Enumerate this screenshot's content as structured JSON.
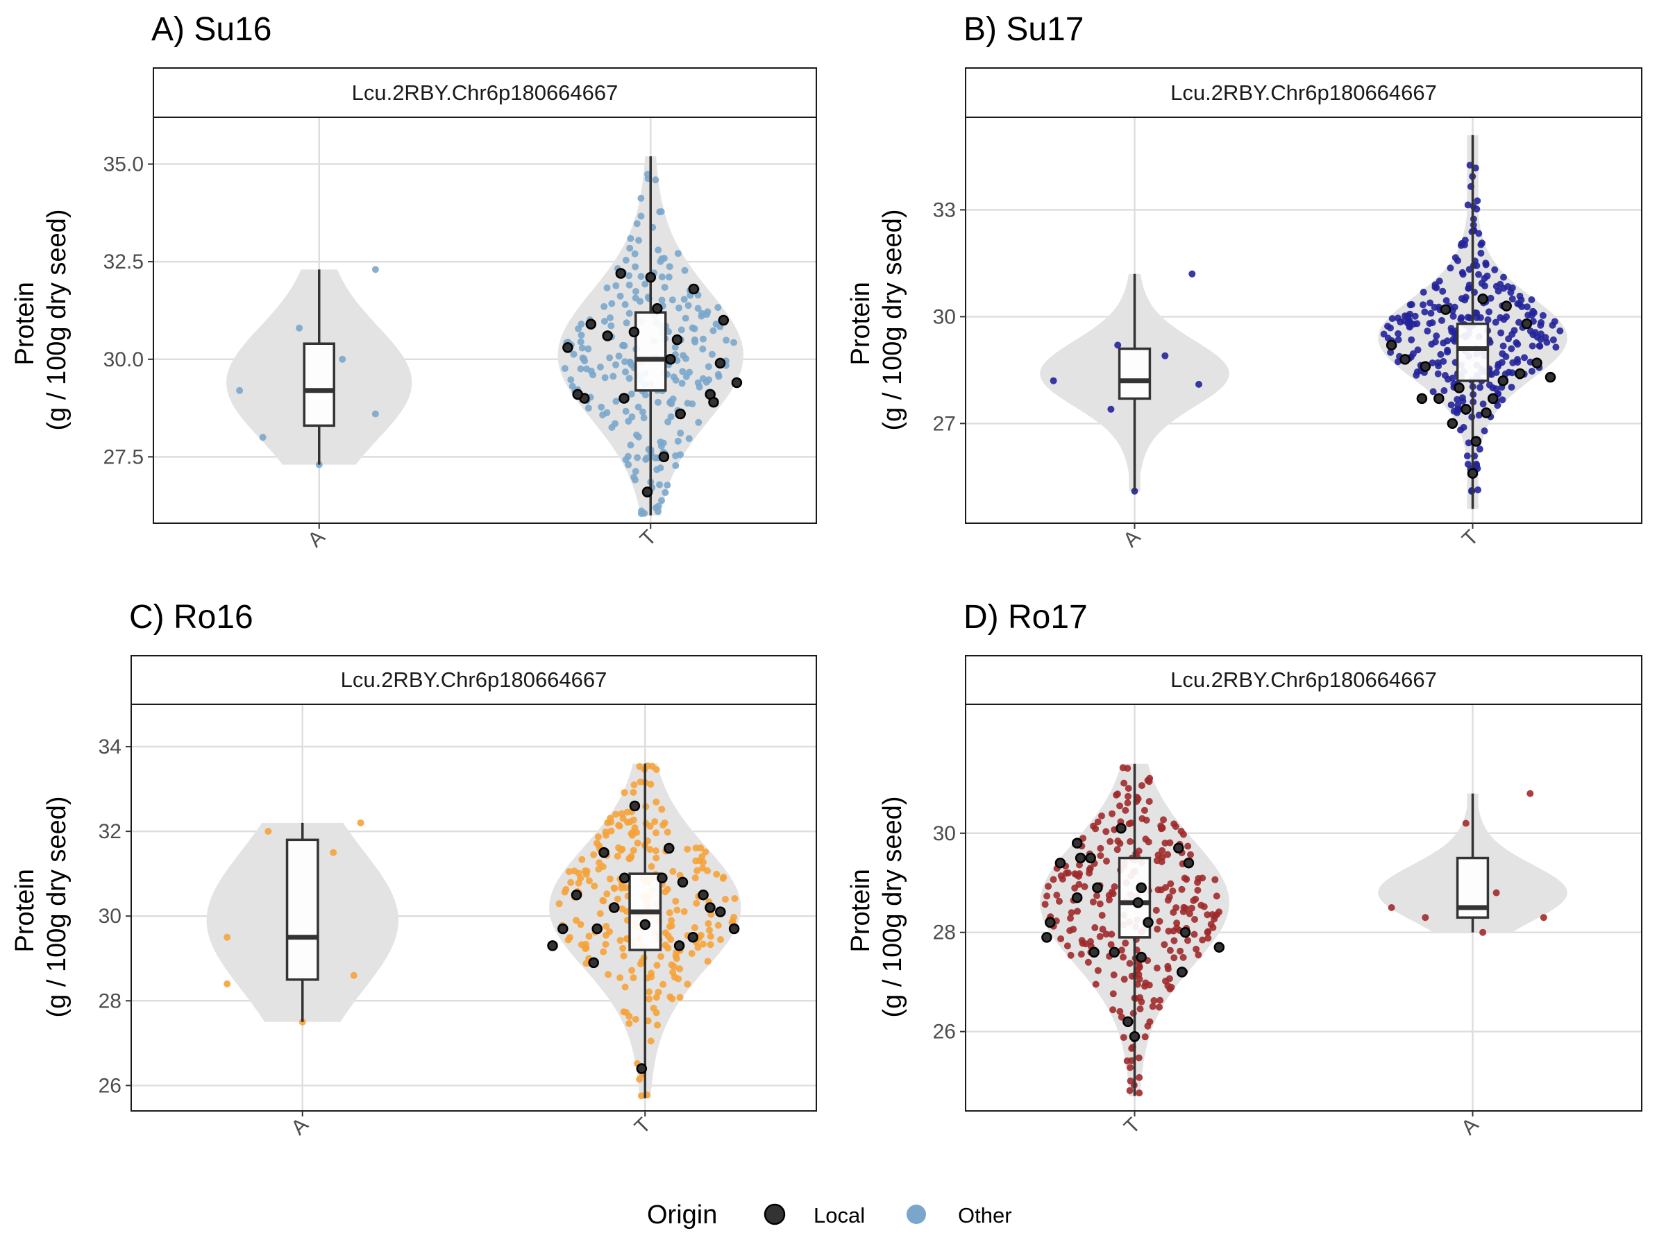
{
  "colors": {
    "violin": "#e3e3e3",
    "grid": "#dedede",
    "box_stroke": "#333333",
    "local": "#1a1a1a",
    "other_legend": "#7aa6cb"
  },
  "legend": {
    "title": "Origin",
    "items": [
      {
        "label": "Local",
        "color": "#333333",
        "outlined": true
      },
      {
        "label": "Other",
        "color": "#7aa6cb",
        "outlined": false
      }
    ]
  },
  "chart_data": [
    {
      "type": "violin",
      "title": "A) Su16",
      "strip": "Lcu.2RBY.Chr6p180664667",
      "ylabel": "Protein\n(g / 100g dry seed)",
      "ylim": [
        25.8,
        36.2
      ],
      "yticks": [
        "27.5",
        "30.0",
        "32.5",
        "35.0"
      ],
      "ytick_values": [
        27.5,
        30.0,
        32.5,
        35.0
      ],
      "categories": [
        "A",
        "T"
      ],
      "point_color": "#7aa6cb",
      "groups": [
        {
          "category": "A",
          "violin_min": 27.3,
          "violin_max": 32.3,
          "violin_mode": 29.4,
          "violin_spread": 1.4,
          "box": {
            "min": 27.3,
            "q1": 28.3,
            "median": 29.2,
            "q3": 30.4,
            "max": 32.3
          },
          "other_points": [
            [
              -0.24,
              29.2
            ],
            [
              -0.17,
              28.0
            ],
            [
              -0.06,
              30.8
            ],
            [
              0.07,
              30.0
            ],
            [
              0.17,
              32.3
            ],
            [
              0.17,
              28.6
            ],
            [
              0.0,
              27.3
            ]
          ],
          "local_points": []
        },
        {
          "category": "T",
          "violin_min": 26.0,
          "violin_max": 35.2,
          "violin_mode": 30.1,
          "violin_spread": 1.6,
          "box": {
            "min": 26.0,
            "q1": 29.2,
            "median": 30.0,
            "q3": 31.2,
            "max": 35.2
          },
          "other_count": 240,
          "other_seed": 11,
          "local_points": [
            [
              -0.09,
              32.2
            ],
            [
              0.0,
              32.1
            ],
            [
              0.13,
              31.8
            ],
            [
              -0.18,
              30.9
            ],
            [
              0.22,
              31.0
            ],
            [
              -0.05,
              30.7
            ],
            [
              0.02,
              31.3
            ],
            [
              0.08,
              30.5
            ],
            [
              -0.25,
              30.3
            ],
            [
              0.21,
              29.9
            ],
            [
              0.26,
              29.4
            ],
            [
              -0.2,
              29.0
            ],
            [
              -0.22,
              29.1
            ],
            [
              0.18,
              29.1
            ],
            [
              0.19,
              28.9
            ],
            [
              -0.08,
              29.0
            ],
            [
              0.09,
              28.6
            ],
            [
              0.04,
              27.5
            ],
            [
              -0.01,
              26.6
            ],
            [
              -0.13,
              30.6
            ],
            [
              0.06,
              30.0
            ]
          ]
        }
      ]
    },
    {
      "type": "violin",
      "title": "B) Su17",
      "strip": "Lcu.2RBY.Chr6p180664667",
      "ylabel": "Protein\n(g / 100g dry seed)",
      "ylim": [
        24.2,
        35.6
      ],
      "yticks": [
        "27",
        "30",
        "33"
      ],
      "ytick_values": [
        27,
        30,
        33
      ],
      "categories": [
        "A",
        "T"
      ],
      "point_color": "#23249a",
      "groups": [
        {
          "category": "A",
          "violin_min": 25.1,
          "violin_max": 31.2,
          "violin_mode": 28.4,
          "violin_spread": 0.9,
          "box": {
            "min": 25.1,
            "q1": 27.7,
            "median": 28.2,
            "q3": 29.1,
            "max": 31.2
          },
          "other_points": [
            [
              -0.24,
              28.2
            ],
            [
              -0.07,
              27.4
            ],
            [
              -0.05,
              29.2
            ],
            [
              0.09,
              28.9
            ],
            [
              0.17,
              31.2
            ],
            [
              0.19,
              28.1
            ],
            [
              0.0,
              25.1
            ]
          ],
          "local_points": []
        },
        {
          "category": "T",
          "violin_min": 24.6,
          "violin_max": 35.1,
          "violin_mode": 29.4,
          "violin_spread": 1.1,
          "box": {
            "min": 24.6,
            "q1": 28.2,
            "median": 29.1,
            "q3": 29.8,
            "max": 35.1
          },
          "other_count": 300,
          "other_seed": 23,
          "local_points": [
            [
              -0.08,
              30.2
            ],
            [
              0.03,
              30.5
            ],
            [
              0.1,
              30.3
            ],
            [
              0.16,
              29.8
            ],
            [
              -0.24,
              29.2
            ],
            [
              -0.2,
              28.8
            ],
            [
              0.19,
              28.7
            ],
            [
              0.23,
              28.3
            ],
            [
              -0.14,
              28.6
            ],
            [
              0.09,
              28.2
            ],
            [
              -0.04,
              28.0
            ],
            [
              0.06,
              27.7
            ],
            [
              -0.1,
              27.7
            ],
            [
              -0.02,
              27.4
            ],
            [
              0.04,
              27.3
            ],
            [
              0.01,
              26.5
            ],
            [
              -0.06,
              27.0
            ],
            [
              0.0,
              25.6
            ],
            [
              -0.15,
              27.7
            ],
            [
              0.14,
              28.4
            ]
          ]
        }
      ]
    },
    {
      "type": "violin",
      "title": "C) Ro16",
      "strip": "Lcu.2RBY.Chr6p180664667",
      "ylabel": "Protein\n(g / 100g dry seed)",
      "ylim": [
        25.4,
        35.0
      ],
      "yticks": [
        "26",
        "28",
        "30",
        "32",
        "34"
      ],
      "ytick_values": [
        26,
        28,
        30,
        32,
        34
      ],
      "categories": [
        "A",
        "T"
      ],
      "point_color": "#f5a23a",
      "groups": [
        {
          "category": "A",
          "violin_min": 27.5,
          "violin_max": 32.2,
          "violin_mode": 29.9,
          "violin_spread": 1.6,
          "box": {
            "min": 27.5,
            "q1": 28.5,
            "median": 29.5,
            "q3": 31.8,
            "max": 32.2
          },
          "other_points": [
            [
              -0.22,
              29.5
            ],
            [
              -0.22,
              28.4
            ],
            [
              -0.1,
              32.0
            ],
            [
              0.09,
              31.5
            ],
            [
              0.17,
              32.2
            ],
            [
              0.15,
              28.6
            ],
            [
              0.0,
              27.5
            ]
          ],
          "local_points": []
        },
        {
          "category": "T",
          "violin_min": 25.7,
          "violin_max": 33.6,
          "violin_mode": 30.2,
          "violin_spread": 1.4,
          "box": {
            "min": 25.7,
            "q1": 29.2,
            "median": 30.1,
            "q3": 31.0,
            "max": 33.6
          },
          "other_count": 260,
          "other_seed": 37,
          "local_points": [
            [
              -0.03,
              32.6
            ],
            [
              -0.12,
              31.5
            ],
            [
              0.07,
              31.6
            ],
            [
              0.11,
              30.8
            ],
            [
              -0.2,
              30.5
            ],
            [
              0.22,
              30.1
            ],
            [
              0.17,
              30.5
            ],
            [
              0.26,
              29.7
            ],
            [
              -0.24,
              29.7
            ],
            [
              -0.27,
              29.3
            ],
            [
              0.1,
              29.3
            ],
            [
              -0.15,
              28.9
            ],
            [
              0.0,
              29.8
            ],
            [
              -0.06,
              30.9
            ],
            [
              0.14,
              29.5
            ],
            [
              -0.01,
              26.4
            ],
            [
              -0.09,
              30.2
            ],
            [
              0.05,
              30.9
            ],
            [
              -0.14,
              29.7
            ],
            [
              0.19,
              30.2
            ]
          ]
        }
      ]
    },
    {
      "type": "violin",
      "title": "D) Ro17",
      "strip": "Lcu.2RBY.Chr6p180664667",
      "ylabel": "Protein\n(g / 100g dry seed)",
      "ylim": [
        24.4,
        32.6
      ],
      "yticks": [
        "26",
        "28",
        "30"
      ],
      "ytick_values": [
        26,
        28,
        30
      ],
      "categories": [
        "T",
        "A"
      ],
      "point_color": "#9e2a2b",
      "groups": [
        {
          "category": "T",
          "violin_min": 24.7,
          "violin_max": 31.4,
          "violin_mode": 28.6,
          "violin_spread": 1.2,
          "box": {
            "min": 24.7,
            "q1": 27.9,
            "median": 28.6,
            "q3": 29.5,
            "max": 31.4
          },
          "other_count": 280,
          "other_seed": 51,
          "local_points": [
            [
              -0.04,
              30.1
            ],
            [
              -0.17,
              29.8
            ],
            [
              -0.22,
              29.4
            ],
            [
              -0.16,
              29.5
            ],
            [
              0.13,
              29.7
            ],
            [
              0.16,
              29.4
            ],
            [
              -0.11,
              28.9
            ],
            [
              0.02,
              28.9
            ],
            [
              -0.17,
              28.7
            ],
            [
              0.01,
              28.6
            ],
            [
              -0.25,
              28.2
            ],
            [
              0.04,
              28.2
            ],
            [
              -0.26,
              27.9
            ],
            [
              0.15,
              28.0
            ],
            [
              0.25,
              27.7
            ],
            [
              -0.12,
              27.6
            ],
            [
              -0.06,
              27.6
            ],
            [
              0.02,
              27.5
            ],
            [
              0.14,
              27.2
            ],
            [
              -0.02,
              26.2
            ],
            [
              0.0,
              25.9
            ],
            [
              -0.13,
              29.5
            ]
          ]
        },
        {
          "category": "A",
          "violin_min": 28.0,
          "violin_max": 30.8,
          "violin_mode": 28.8,
          "violin_spread": 0.55,
          "box": {
            "min": 28.0,
            "q1": 28.3,
            "median": 28.5,
            "q3": 29.5,
            "max": 30.8
          },
          "other_points": [
            [
              -0.24,
              28.5
            ],
            [
              -0.14,
              28.3
            ],
            [
              -0.02,
              30.2
            ],
            [
              0.03,
              28.0
            ],
            [
              0.07,
              28.8
            ],
            [
              0.17,
              30.8
            ],
            [
              0.21,
              28.3
            ]
          ],
          "local_points": []
        }
      ]
    }
  ]
}
